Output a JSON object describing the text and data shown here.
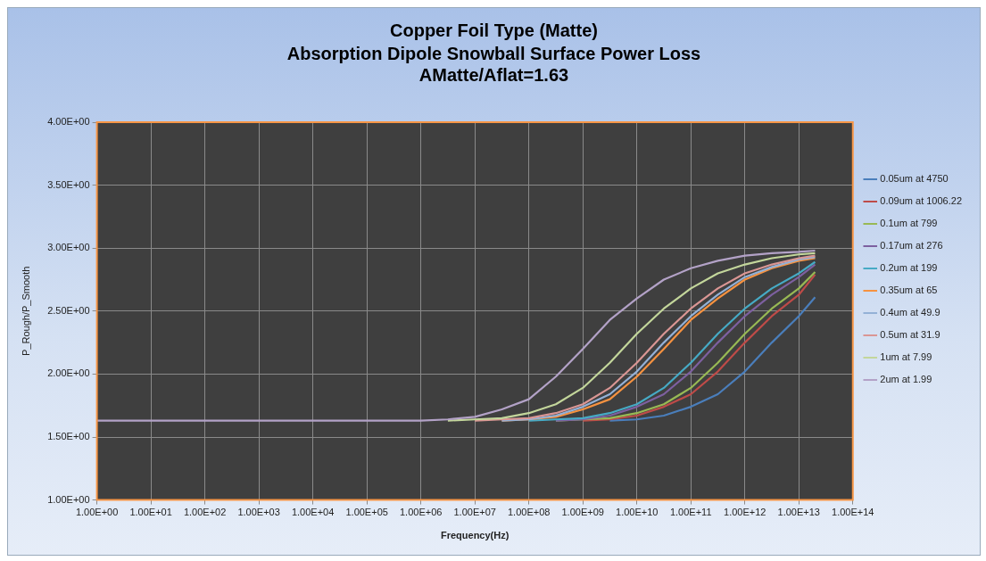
{
  "chart_data": {
    "type": "line",
    "title": "Copper Foil Type (Matte)",
    "subtitle": "Absorption Dipole Snowball Surface Power Loss\nAMatte/Aflat=1.63",
    "xlabel": "Frequency(Hz)",
    "ylabel": "P_Rough/P_Smooth",
    "log": "x",
    "grid": true,
    "legend": "right",
    "marker": "none",
    "line_style": "solid",
    "x": [
      1,
      10,
      100,
      1000,
      10000,
      100000,
      1000000,
      3160000,
      10000000,
      31600000,
      100000000,
      316000000,
      1000000000,
      3160000000,
      10000000000,
      31600000000,
      100000000000,
      316000000000,
      1000000000000,
      3160000000000,
      10000000000000,
      20000000000000
    ],
    "xlim": [
      1,
      100000000000000
    ],
    "xticks": [
      {
        "value": 1,
        "label": "1.00E+00"
      },
      {
        "value": 10,
        "label": "1.00E+01"
      },
      {
        "value": 100,
        "label": "1.00E+02"
      },
      {
        "value": 1000,
        "label": "1.00E+03"
      },
      {
        "value": 10000,
        "label": "1.00E+04"
      },
      {
        "value": 100000,
        "label": "1.00E+05"
      },
      {
        "value": 1000000,
        "label": "1.00E+06"
      },
      {
        "value": 10000000,
        "label": "1.00E+07"
      },
      {
        "value": 100000000,
        "label": "1.00E+08"
      },
      {
        "value": 1000000000,
        "label": "1.00E+09"
      },
      {
        "value": 10000000000,
        "label": "1.00E+10"
      },
      {
        "value": 100000000000,
        "label": "1.00E+11"
      },
      {
        "value": 1000000000000,
        "label": "1.00E+12"
      },
      {
        "value": 10000000000000,
        "label": "1.00E+13"
      },
      {
        "value": 100000000000000,
        "label": "1.00E+14"
      }
    ],
    "ylim": [
      1,
      4
    ],
    "yticks": [
      {
        "value": 1,
        "label": "1.00E+00"
      },
      {
        "value": 1.5,
        "label": "1.50E+00"
      },
      {
        "value": 2,
        "label": "2.00E+00"
      },
      {
        "value": 2.5,
        "label": "2.50E+00"
      },
      {
        "value": 3,
        "label": "3.00E+00"
      },
      {
        "value": 3.5,
        "label": "3.50E+00"
      },
      {
        "value": 4,
        "label": "4.00E+00"
      }
    ],
    "series": [
      {
        "name": "0.05um at 4750",
        "color": "#4a7ebb",
        "values": [
          null,
          null,
          null,
          null,
          null,
          null,
          null,
          null,
          null,
          null,
          null,
          null,
          null,
          1.63,
          1.64,
          1.67,
          1.74,
          1.84,
          2.02,
          2.25,
          2.46,
          2.61
        ]
      },
      {
        "name": "0.09um at 1006.22",
        "color": "#be4b48",
        "values": [
          null,
          null,
          null,
          null,
          null,
          null,
          null,
          null,
          null,
          null,
          null,
          null,
          1.63,
          1.64,
          1.67,
          1.74,
          1.84,
          2.02,
          2.25,
          2.46,
          2.63,
          2.79
        ]
      },
      {
        "name": "0.1um at 799",
        "color": "#98b954",
        "values": [
          null,
          null,
          null,
          null,
          null,
          null,
          null,
          null,
          null,
          null,
          null,
          1.63,
          1.64,
          1.65,
          1.69,
          1.76,
          1.89,
          2.09,
          2.32,
          2.52,
          2.68,
          2.81
        ]
      },
      {
        "name": "0.17um at 276",
        "color": "#7d60a0",
        "values": [
          null,
          null,
          null,
          null,
          null,
          null,
          null,
          null,
          null,
          null,
          null,
          1.63,
          1.64,
          1.67,
          1.74,
          1.84,
          2.02,
          2.25,
          2.46,
          2.63,
          2.77,
          2.87
        ]
      },
      {
        "name": "0.2um at 199",
        "color": "#46aac5",
        "values": [
          null,
          null,
          null,
          null,
          null,
          null,
          null,
          null,
          null,
          null,
          1.63,
          1.64,
          1.65,
          1.69,
          1.76,
          1.89,
          2.09,
          2.32,
          2.52,
          2.68,
          2.8,
          2.89
        ]
      },
      {
        "name": "0.35um at 65",
        "color": "#f69240",
        "values": [
          null,
          null,
          null,
          null,
          null,
          null,
          null,
          null,
          null,
          1.63,
          1.64,
          1.66,
          1.72,
          1.8,
          1.98,
          2.2,
          2.43,
          2.6,
          2.75,
          2.84,
          2.9,
          2.92
        ]
      },
      {
        "name": "0.4um at 49.9",
        "color": "#94b1d6",
        "values": [
          null,
          null,
          null,
          null,
          null,
          null,
          null,
          null,
          null,
          1.63,
          1.64,
          1.67,
          1.74,
          1.84,
          2.02,
          2.25,
          2.46,
          2.63,
          2.77,
          2.85,
          2.91,
          2.93
        ]
      },
      {
        "name": "0.5um at 31.9",
        "color": "#da9694",
        "values": [
          null,
          null,
          null,
          null,
          null,
          null,
          null,
          null,
          1.63,
          1.64,
          1.65,
          1.69,
          1.76,
          1.89,
          2.09,
          2.32,
          2.52,
          2.68,
          2.8,
          2.87,
          2.92,
          2.94
        ]
      },
      {
        "name": "1um at 7.99",
        "color": "#c3d69b",
        "values": [
          null,
          null,
          null,
          null,
          null,
          null,
          null,
          1.63,
          1.64,
          1.65,
          1.69,
          1.76,
          1.89,
          2.09,
          2.32,
          2.52,
          2.68,
          2.8,
          2.87,
          2.92,
          2.95,
          2.96
        ]
      },
      {
        "name": "2um at 1.99",
        "color": "#b3a2c7",
        "values": [
          1.63,
          1.63,
          1.63,
          1.63,
          1.63,
          1.63,
          1.63,
          1.64,
          1.66,
          1.72,
          1.8,
          1.98,
          2.2,
          2.43,
          2.6,
          2.75,
          2.84,
          2.9,
          2.94,
          2.96,
          2.97,
          2.98
        ]
      }
    ]
  }
}
